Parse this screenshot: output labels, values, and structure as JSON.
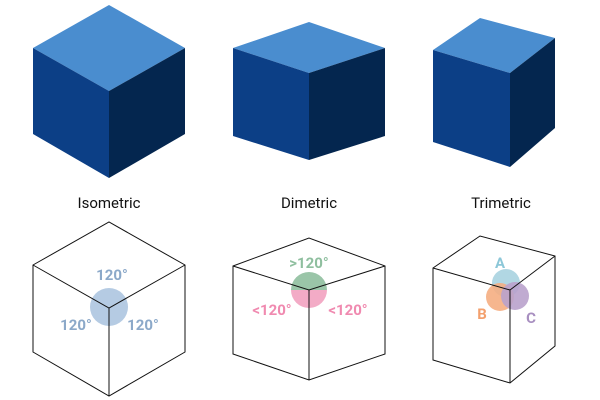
{
  "panels": [
    {
      "title": "Isometric",
      "angles": [
        "120°",
        "120°",
        "120°"
      ]
    },
    {
      "title": "Dimetric",
      "angles": [
        ">120°",
        "<120°",
        "<120°"
      ]
    },
    {
      "title": "Trimetric",
      "angles": [
        "A",
        "B",
        "C"
      ]
    }
  ]
}
